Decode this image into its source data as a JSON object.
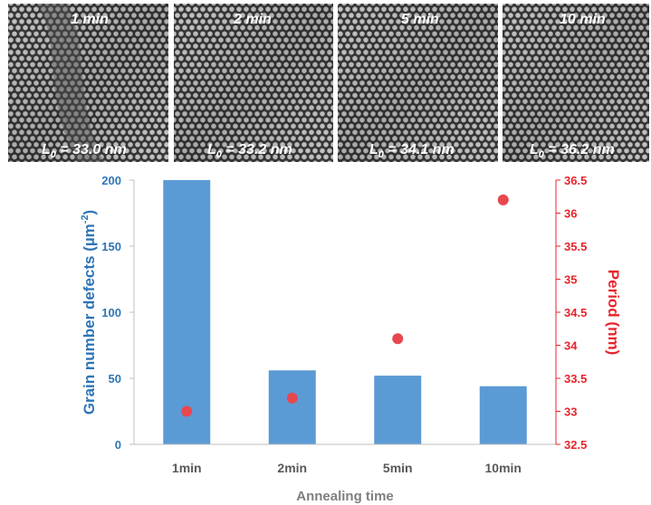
{
  "micrographs": [
    {
      "time_label": "1 min",
      "period_label": "L",
      "period_subscript": "0",
      "period_value": " = 33.0 nm"
    },
    {
      "time_label": "2 min",
      "period_label": "L",
      "period_subscript": "0",
      "period_value": " = 33.2 nm"
    },
    {
      "time_label": "5 min",
      "period_label": "L",
      "period_subscript": "0",
      "period_value": " = 34.1 nm"
    },
    {
      "time_label": "10 min",
      "period_label": "L",
      "period_subscript": "0",
      "period_value": " = 36.2 nm"
    }
  ],
  "chart_data": {
    "type": "bar",
    "categories": [
      "1min",
      "2min",
      "5min",
      "10min"
    ],
    "xlabel": "Annealing time",
    "ylabel_left": "Grain number defects (µm",
    "ylabel_left_sup": "-2",
    "ylabel_left_close": ")",
    "ylabel_right": "Period (nm)",
    "series": [
      {
        "axis": "left",
        "kind": "bar",
        "values": [
          200,
          56,
          52,
          44
        ],
        "color": "#5b9bd5"
      },
      {
        "axis": "right",
        "kind": "scatter",
        "values": [
          33.0,
          33.2,
          34.1,
          36.2
        ],
        "color": "#e8474e"
      }
    ],
    "ylim_left": [
      0,
      200
    ],
    "yticks_left": [
      "0",
      "50",
      "100",
      "150",
      "200"
    ],
    "ylim_right": [
      32.5,
      36.5
    ],
    "yticks_right": [
      "32.5",
      "33",
      "33.5",
      "34",
      "34.5",
      "35",
      "35.5",
      "36",
      "36.5"
    ],
    "left_axis_color": "#2e75b6",
    "right_axis_color": "#e8242b",
    "grid": false
  }
}
